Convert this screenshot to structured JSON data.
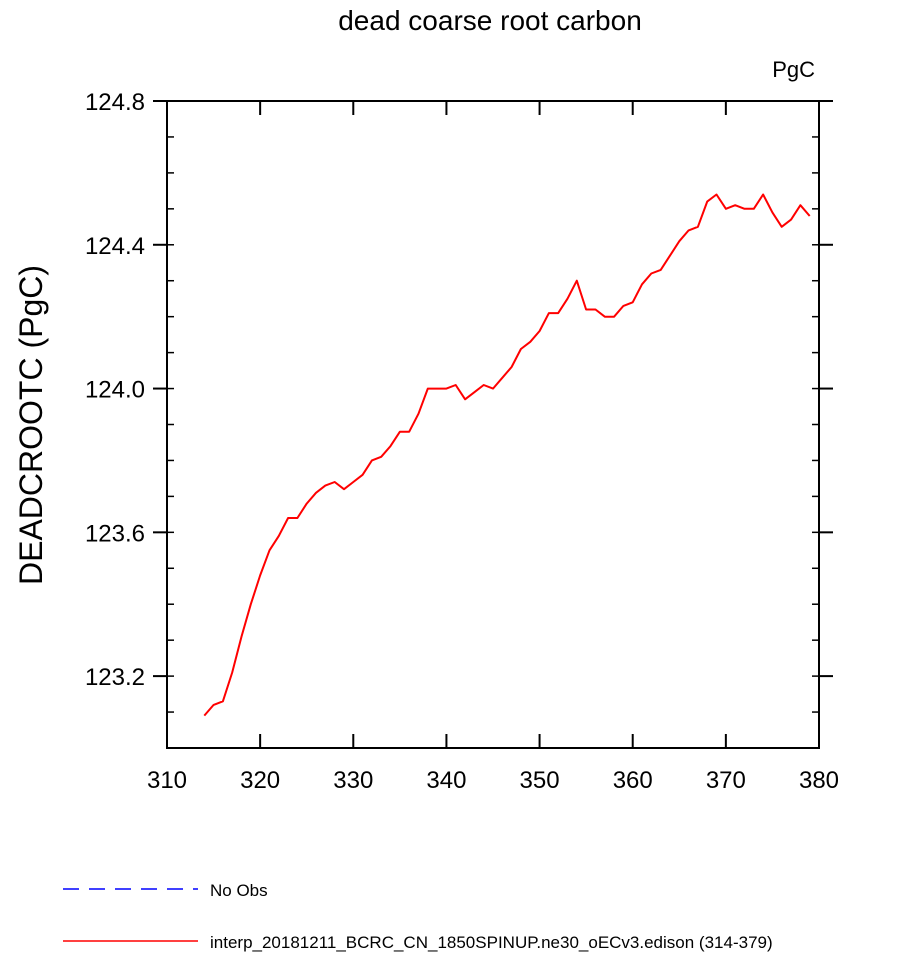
{
  "chart_data": {
    "type": "line",
    "title": "dead coarse root carbon",
    "units_label": "PgC",
    "ylabel": "DEADCROOTC  (PgC)",
    "xlabel": "",
    "xlim": [
      310,
      380
    ],
    "ylim": [
      123.0,
      124.8
    ],
    "xticks": [
      "310",
      "320",
      "330",
      "340",
      "350",
      "360",
      "370",
      "380"
    ],
    "yticks": [
      "123.2",
      "123.6",
      "124.0",
      "124.4",
      "124.8"
    ],
    "grid": false,
    "series": [
      {
        "name": "interp_20181211_BCRC_CN_1850SPINUP.ne30_oECv3.edison (314-379)",
        "color": "#ff0000",
        "dash": "solid",
        "x": [
          314,
          315,
          316,
          317,
          318,
          319,
          320,
          321,
          322,
          323,
          324,
          325,
          326,
          327,
          328,
          329,
          330,
          331,
          332,
          333,
          334,
          335,
          336,
          337,
          338,
          339,
          340,
          341,
          342,
          343,
          344,
          345,
          346,
          347,
          348,
          349,
          350,
          351,
          352,
          353,
          354,
          355,
          356,
          357,
          358,
          359,
          360,
          361,
          362,
          363,
          364,
          365,
          366,
          367,
          368,
          369,
          370,
          371,
          372,
          373,
          374,
          375,
          376,
          377,
          378,
          379
        ],
        "y": [
          123.09,
          123.12,
          123.13,
          123.21,
          123.31,
          123.4,
          123.48,
          123.55,
          123.59,
          123.64,
          123.64,
          123.68,
          123.71,
          123.73,
          123.74,
          123.72,
          123.74,
          123.76,
          123.8,
          123.81,
          123.84,
          123.88,
          123.88,
          123.93,
          124.0,
          124.0,
          124.0,
          124.01,
          123.97,
          123.99,
          124.01,
          124.0,
          124.03,
          124.06,
          124.11,
          124.13,
          124.16,
          124.21,
          124.21,
          124.25,
          124.3,
          124.22,
          124.22,
          124.2,
          124.2,
          124.23,
          124.24,
          124.29,
          124.32,
          124.33,
          124.37,
          124.41,
          124.44,
          124.45,
          124.52,
          124.54,
          124.5,
          124.51,
          124.5,
          124.5,
          124.54,
          124.49,
          124.45,
          124.47,
          124.51,
          124.48
        ]
      }
    ],
    "legend": {
      "placement": "bottom-left",
      "entries": [
        {
          "label": "No Obs",
          "color": "#0000ff",
          "dash": "dashed"
        },
        {
          "label": "interp_20181211_BCRC_CN_1850SPINUP.ne30_oECv3.edison (314-379)",
          "color": "#ff0000",
          "dash": "solid"
        }
      ]
    }
  }
}
